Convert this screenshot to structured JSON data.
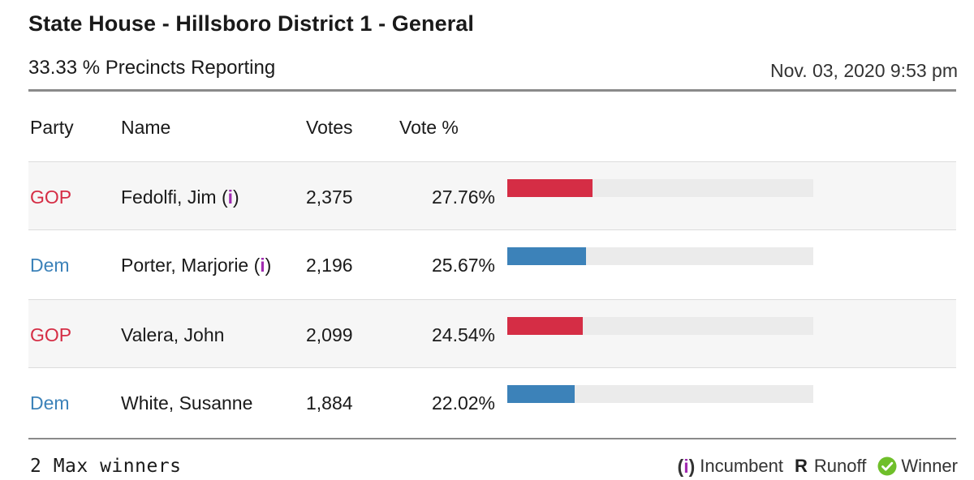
{
  "race": {
    "title": "State House - Hillsboro District 1 - General",
    "precincts_reporting": "33.33 % Precincts Reporting",
    "timestamp": "Nov. 03, 2020 9:53 pm"
  },
  "columns": {
    "party": "Party",
    "name": "Name",
    "votes": "Votes",
    "vote_pct": "Vote %"
  },
  "candidates": [
    {
      "party": "GOP",
      "name": "Fedolfi, Jim",
      "incumbent": true,
      "votes": "2,375",
      "vote_pct": "27.76%",
      "share": 0.2776
    },
    {
      "party": "Dem",
      "name": "Porter, Marjorie",
      "incumbent": true,
      "votes": "2,196",
      "vote_pct": "25.67%",
      "share": 0.2567
    },
    {
      "party": "GOP",
      "name": "Valera, John",
      "incumbent": false,
      "votes": "2,099",
      "vote_pct": "24.54%",
      "share": 0.2454
    },
    {
      "party": "Dem",
      "name": "White, Susanne",
      "incumbent": false,
      "votes": "1,884",
      "vote_pct": "22.02%",
      "share": 0.2202
    }
  ],
  "colors": {
    "GOP": "#d52d45",
    "Dem": "#3c82b9",
    "incumbent_mark": "#a02bb0",
    "winner": "#6fbf2a"
  },
  "footer": {
    "max_winners": "2 Max winners",
    "legend": {
      "incumbent_symbol": "(i)",
      "incumbent_label": "Incumbent",
      "runoff_symbol": "R",
      "runoff_label": "Runoff",
      "winner_icon": "checkmark-circle-icon",
      "winner_label": "Winner"
    }
  }
}
